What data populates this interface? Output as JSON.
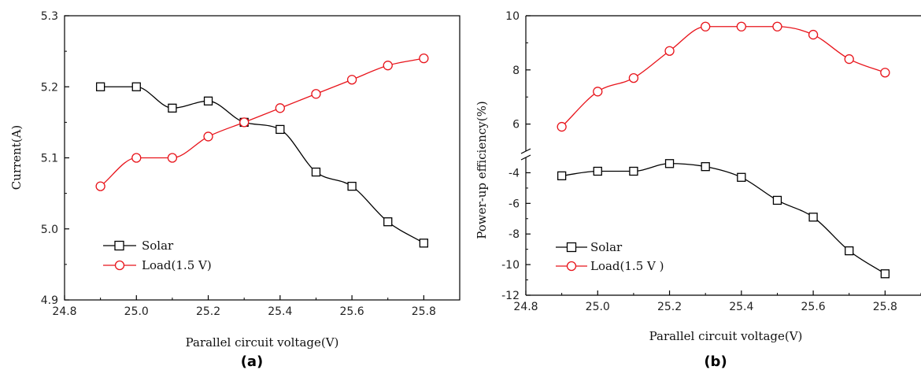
{
  "chart_data": [
    {
      "type": "line",
      "panel_label": "(a)",
      "xlabel": "Parallel circuit voltage(V)",
      "ylabel": "Current(A)",
      "xlim": [
        24.8,
        25.9
      ],
      "ylim": [
        4.9,
        5.3
      ],
      "xticks": [
        "24.8",
        "25.0",
        "25.2",
        "25.4",
        "25.6",
        "25.8"
      ],
      "yticks": [
        "4.9",
        "5.0",
        "5.1",
        "5.2",
        "5.3"
      ],
      "x": [
        24.9,
        25.0,
        25.1,
        25.2,
        25.3,
        25.4,
        25.5,
        25.6,
        25.7,
        25.8
      ],
      "legend_position": "bottom-left",
      "series": [
        {
          "name": "Solar",
          "marker": "square",
          "color": "#000000",
          "values": [
            5.2,
            5.2,
            5.17,
            5.18,
            5.15,
            5.14,
            5.08,
            5.06,
            5.01,
            4.98
          ]
        },
        {
          "name": "Load(1.5 V)",
          "marker": "circle",
          "color": "#e8141b",
          "values": [
            5.06,
            5.1,
            5.1,
            5.13,
            5.15,
            5.17,
            5.19,
            5.21,
            5.23,
            5.24
          ]
        }
      ]
    },
    {
      "type": "line",
      "panel_label": "(b)",
      "xlabel": "Parallel circuit voltage(V)",
      "ylabel": "Power-up efficiency(%)",
      "xlim": [
        24.8,
        25.9
      ],
      "broken_y_axis": true,
      "ylim_lower": [
        -12,
        -3
      ],
      "ylim_upper": [
        5,
        10
      ],
      "yticks_lower": [
        "-12",
        "-10",
        "-8",
        "-6",
        "-4"
      ],
      "yticks_upper": [
        "6",
        "8",
        "10"
      ],
      "xticks": [
        "24.8",
        "25.0",
        "25.2",
        "25.4",
        "25.6",
        "25.8"
      ],
      "x": [
        24.9,
        25.0,
        25.1,
        25.2,
        25.3,
        25.4,
        25.5,
        25.6,
        25.7,
        25.8
      ],
      "legend_position": "bottom-left",
      "series": [
        {
          "name": "Solar",
          "marker": "square",
          "color": "#000000",
          "values": [
            -4.2,
            -3.9,
            -3.9,
            -3.4,
            -3.6,
            -4.3,
            -5.8,
            -6.9,
            -9.1,
            -10.6
          ]
        },
        {
          "name": "Load(1.5 V )",
          "marker": "circle",
          "color": "#e8141b",
          "values": [
            5.9,
            7.2,
            7.7,
            8.7,
            9.6,
            9.6,
            9.6,
            9.3,
            8.4,
            7.9
          ]
        }
      ]
    }
  ]
}
